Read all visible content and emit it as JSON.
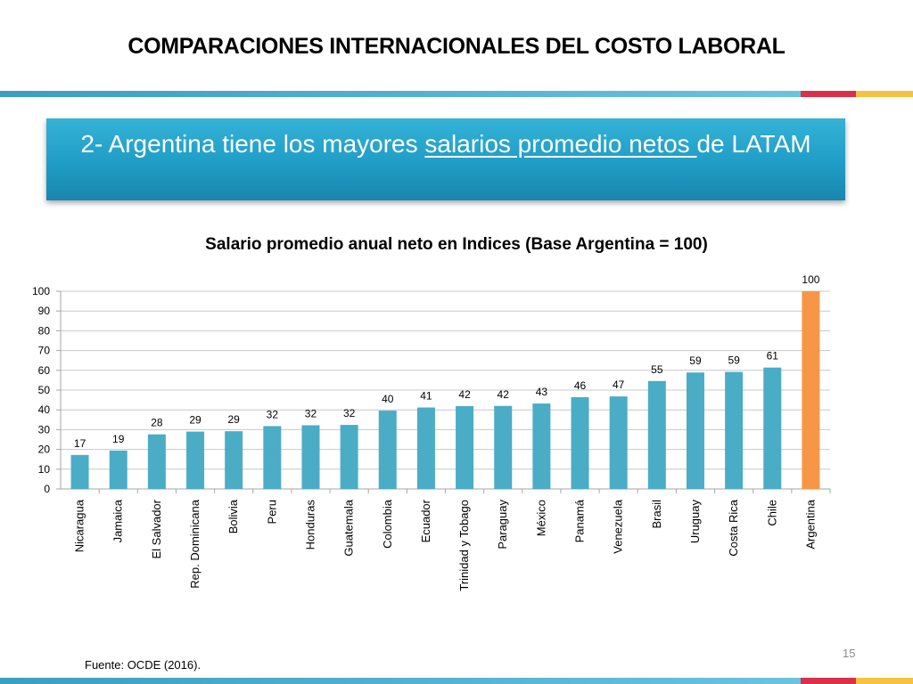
{
  "slide": {
    "title": "COMPARACIONES INTERNACIONALES DEL COSTO LABORAL",
    "banner_pre": "2- Argentina tiene los mayores ",
    "banner_underlined": "salarios promedio netos ",
    "banner_post": "de LATAM",
    "source": "Fuente: OCDE (2016).",
    "page_number": "15"
  },
  "colors": {
    "bar": "#4bacc6",
    "highlight_bar": "#f79646",
    "stripe_blue": "#4bacc6",
    "stripe_red": "#d9314a",
    "stripe_yellow": "#f5c242"
  },
  "chart_data": {
    "type": "bar",
    "title": "Salario promedio anual neto en Indices (Base Argentina = 100)",
    "categories": [
      "Nicaragua",
      "Jamaica",
      "El Salvador",
      "Rep. Dominicana",
      "Bolivia",
      "Peru",
      "Honduras",
      "Guatemala",
      "Colombia",
      "Ecuador",
      "Trinidad y Tobago",
      "Paraguay",
      "México",
      "Panamá",
      "Venezuela",
      "Brasil",
      "Uruguay",
      "Costa Rica",
      "Chile",
      "Argentina"
    ],
    "values": [
      17,
      19,
      28,
      29,
      29,
      32,
      32,
      32,
      40,
      41,
      42,
      42,
      43,
      46,
      47,
      55,
      59,
      59,
      61,
      100
    ],
    "plotted_values": [
      17.2,
      19.4,
      27.6,
      29,
      29.2,
      31.8,
      32.2,
      32.4,
      39.6,
      41.2,
      41.9,
      42,
      43.2,
      46.4,
      46.8,
      54.6,
      58.9,
      59.2,
      61.4,
      100
    ],
    "highlight_category": "Argentina",
    "ylim": [
      0,
      100
    ],
    "yticks": [
      0,
      10,
      20,
      30,
      40,
      50,
      60,
      70,
      80,
      90,
      100
    ],
    "xlabel": "",
    "ylabel": "",
    "grid": true,
    "legend": "none"
  }
}
